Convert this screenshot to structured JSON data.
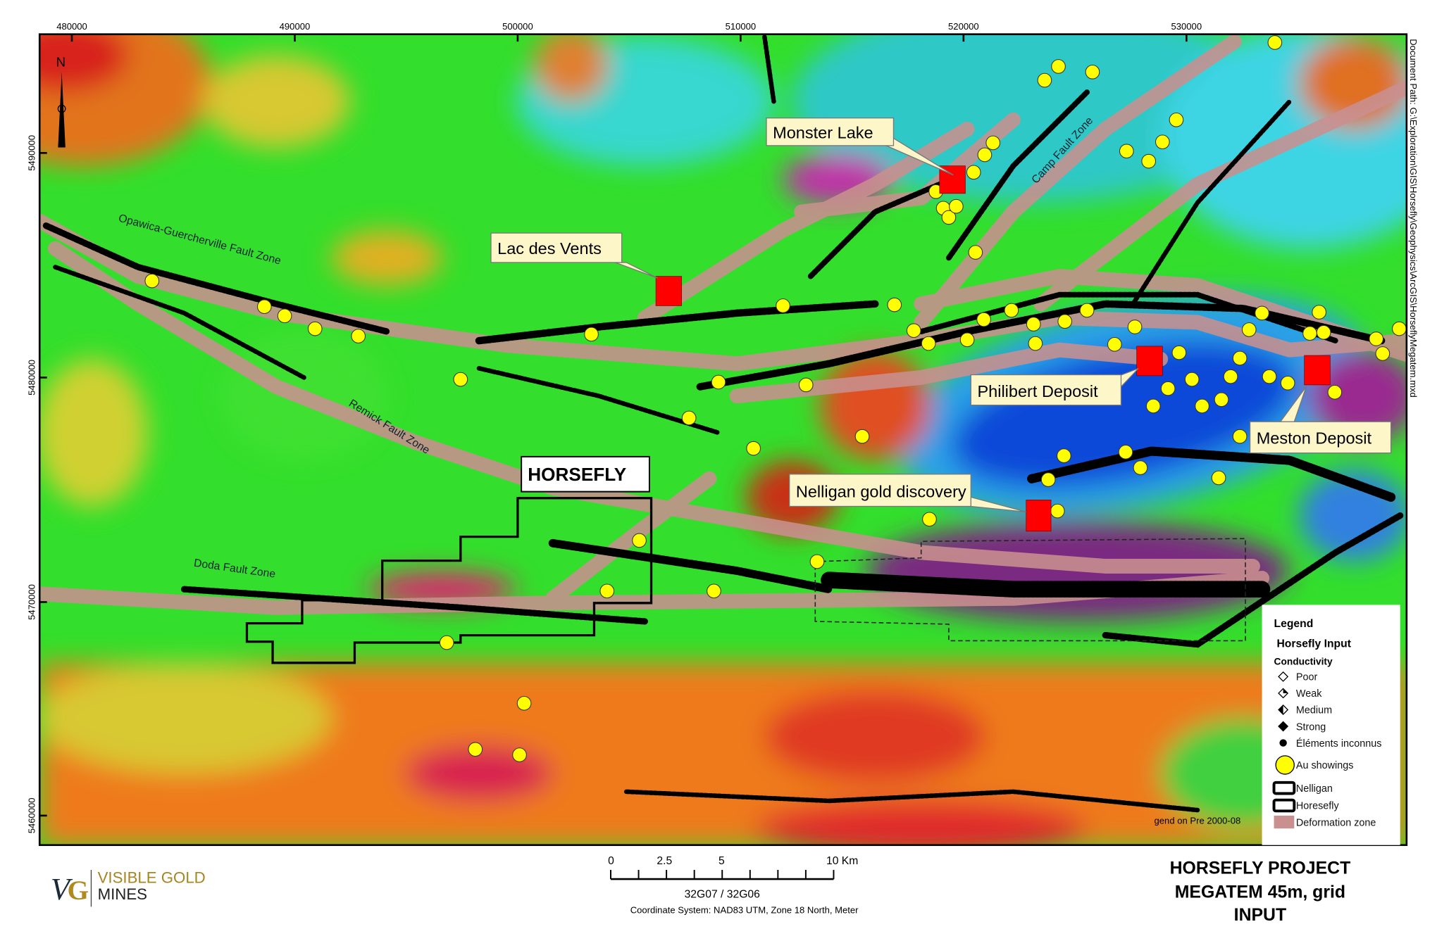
{
  "map": {
    "north_label": "N",
    "x_ticks": [
      "480000",
      "490000",
      "500000",
      "510000",
      "520000",
      "530000"
    ],
    "y_ticks": [
      "5490000",
      "5480000",
      "5470000",
      "5460000"
    ],
    "document_path": "Document Path: G:\\Exploration\\GIS\\Horsefly\\Geophysics\\ArcGIS\\HorseflyMegatem.mxd",
    "callouts": {
      "monster_lake": "Monster Lake",
      "lac_des_vents": "Lac des Vents",
      "philibert": "Philibert Deposit",
      "meston": "Meston Deposit",
      "nelligan": "Nelligan gold discovery",
      "horsefly": "HORSEFLY"
    },
    "fault_zones": {
      "opawica": "Opawica-Guercherville Fault Zone",
      "remick": "Remick Fault Zone",
      "doda": "Doda Fault Zone",
      "camp": "Camp Fault Zone"
    },
    "hidden_note": "gend on Pre 2000-08",
    "colors": {
      "deposit": "#ff0000",
      "au_showing": "#ffff00",
      "deformation_zone": "#c9908f"
    }
  },
  "legend": {
    "title": "Legend",
    "subtitle": "Horsefly Input",
    "group": "Conductivity",
    "items": [
      {
        "label": "Poor",
        "icon": "diamond-open-icon"
      },
      {
        "label": "Weak",
        "icon": "diamond-quarter-icon"
      },
      {
        "label": "Medium",
        "icon": "diamond-half-icon"
      },
      {
        "label": "Strong",
        "icon": "diamond-filled-icon"
      },
      {
        "label": "Éléments inconnus",
        "icon": "dot-filled-icon"
      },
      {
        "label": "Au showings",
        "icon": "yellow-circle-icon"
      },
      {
        "label": "Nelligan",
        "icon": "nelligan-outline-icon"
      },
      {
        "label": "Horesefly",
        "icon": "horsefly-outline-icon"
      },
      {
        "label": "Deformation zone",
        "icon": "pink-swatch-icon"
      }
    ]
  },
  "footer": {
    "logo_line1": "VISIBLE GOLD",
    "logo_line2": "MINES",
    "scale_labels": [
      "0",
      "2.5",
      "5",
      "10 Km"
    ],
    "sheets": "32G07 / 32G06",
    "coordinate_system": "Coordinate System: NAD83 UTM, Zone 18 North, Meter",
    "title_lines": [
      "HORSEFLY PROJECT",
      "MEGATEM 45m, grid",
      "INPUT"
    ]
  }
}
